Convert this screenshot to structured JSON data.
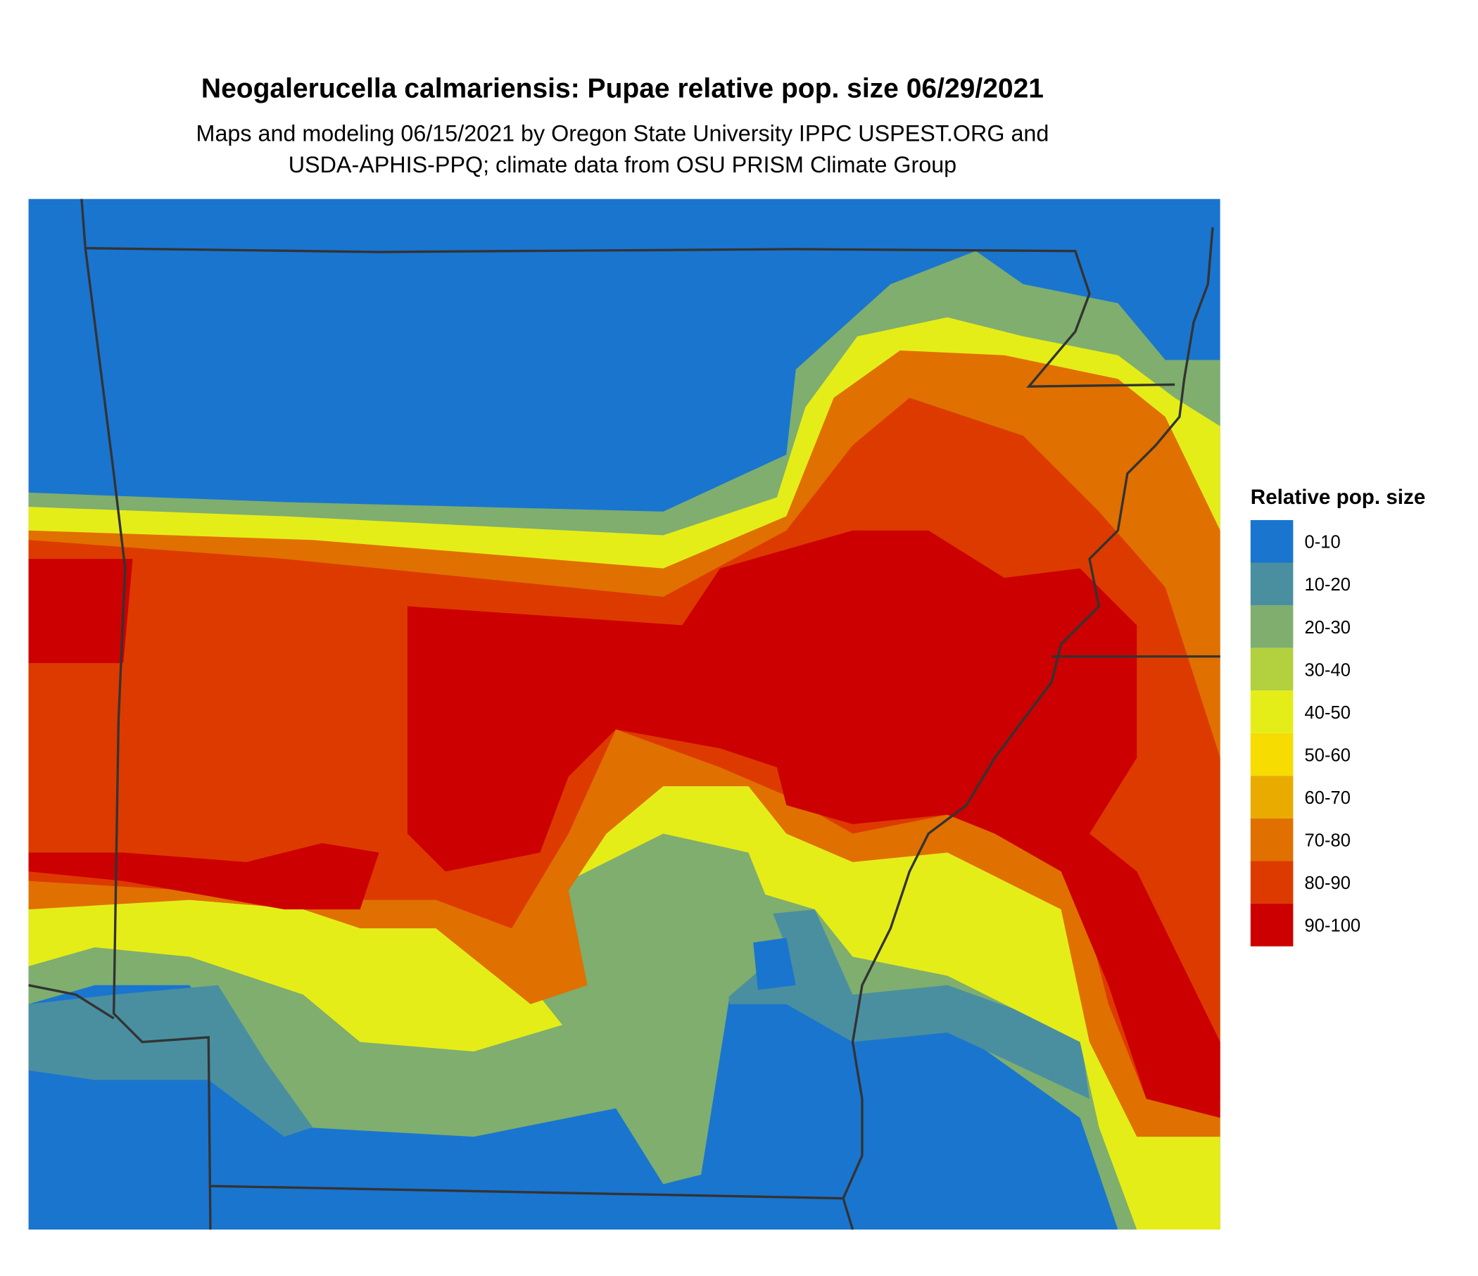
{
  "title": "Neogalerucella calmariensis: Pupae relative pop. size 06/29/2021",
  "subtitle": [
    "Maps and modeling 06/15/2021 by Oregon State University IPPC USPEST.ORG and",
    "USDA-APHIS-PPQ; climate data from OSU PRISM Climate Group"
  ],
  "legend": {
    "title": "Relative pop. size",
    "items": [
      {
        "label": "0-10",
        "color": "#1a75cf"
      },
      {
        "label": "10-20",
        "color": "#4a8fa0"
      },
      {
        "label": "20-30",
        "color": "#7fae6e"
      },
      {
        "label": "30-40",
        "color": "#b3d03f"
      },
      {
        "label": "40-50",
        "color": "#e5ed18"
      },
      {
        "label": "50-60",
        "color": "#f7dc00"
      },
      {
        "label": "60-70",
        "color": "#eaab00"
      },
      {
        "label": "70-80",
        "color": "#e07000"
      },
      {
        "label": "80-90",
        "color": "#dd3a00"
      },
      {
        "label": "90-100",
        "color": "#cc0000"
      }
    ]
  }
}
